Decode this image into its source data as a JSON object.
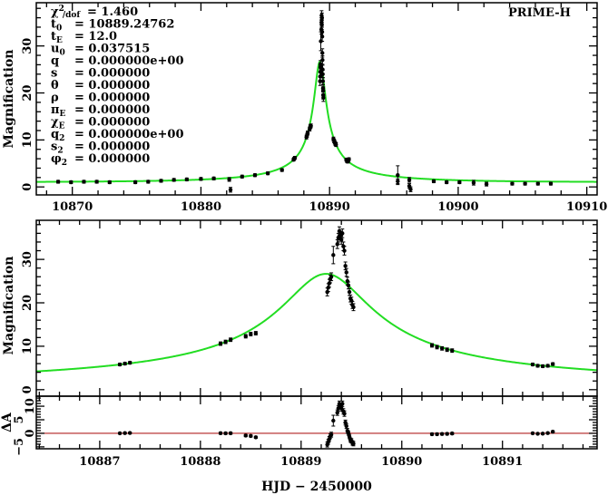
{
  "chart_data": [
    {
      "type": "scatter",
      "panel": "full-light-curve",
      "title": "",
      "annotation": "PRIME-H",
      "xlabel": "",
      "ylabel": "Magnification",
      "xlim": [
        10867.2,
        10910.8
      ],
      "ylim": [
        -1.7,
        39.2
      ],
      "xticks": [
        10870,
        10880,
        10890,
        10900,
        10910
      ],
      "yticks": [
        0,
        10,
        20,
        30
      ],
      "grid": false
    },
    {
      "type": "scatter",
      "panel": "zoomed-light-curve",
      "ylabel": "Magnification",
      "xlim": [
        10886.37,
        10891.94
      ],
      "ylim": [
        -1.5,
        39.0
      ],
      "yticks": [
        0,
        10,
        20,
        30
      ],
      "grid": false
    },
    {
      "type": "scatter",
      "panel": "residuals",
      "ylabel": "ΔA",
      "xlabel": "HJD − 2450000",
      "xlim": [
        10886.37,
        10891.94
      ],
      "ylim": [
        -5.7,
        13.7
      ],
      "xticks": [
        10887,
        10888,
        10889,
        10890,
        10891
      ],
      "yticks": [
        -5,
        0,
        5,
        10
      ],
      "zero_line_color": "#b22222",
      "grid": false
    }
  ],
  "model": {
    "color": "#22dd22",
    "t0": 10889.24762,
    "tE": 12.0,
    "u0": 0.037515
  },
  "data_points": [
    [
      10868.9,
      1.1,
      0.3
    ],
    [
      10869.9,
      1.0,
      0.3
    ],
    [
      10870.9,
      1.1,
      0.3
    ],
    [
      10871.9,
      1.1,
      0.3
    ],
    [
      10872.9,
      1.0,
      0.3
    ],
    [
      10874.9,
      1.0,
      0.3
    ],
    [
      10875.9,
      1.1,
      0.3
    ],
    [
      10876.9,
      1.3,
      0.3
    ],
    [
      10877.9,
      1.5,
      0.3
    ],
    [
      10878.9,
      1.6,
      0.3
    ],
    [
      10880.0,
      1.7,
      0.3
    ],
    [
      10881.0,
      1.8,
      0.3
    ],
    [
      10882.2,
      1.6,
      0.4
    ],
    [
      10882.3,
      -0.6,
      0.5
    ],
    [
      10883.2,
      2.2,
      0.3
    ],
    [
      10884.2,
      2.5,
      0.3
    ],
    [
      10885.2,
      2.9,
      0.3
    ],
    [
      10886.3,
      3.6,
      0.3
    ],
    [
      10887.2,
      5.8,
      0.3
    ],
    [
      10887.25,
      6.0,
      0.3
    ],
    [
      10887.3,
      6.2,
      0.3
    ],
    [
      10888.2,
      10.6,
      0.4
    ],
    [
      10888.25,
      11.0,
      0.4
    ],
    [
      10888.3,
      11.5,
      0.4
    ],
    [
      10888.45,
      12.3,
      0.4
    ],
    [
      10888.5,
      12.8,
      0.4
    ],
    [
      10888.55,
      13.0,
      0.4
    ],
    [
      10889.26,
      22.5,
      0.9
    ],
    [
      10889.27,
      23.5,
      0.9
    ],
    [
      10889.28,
      24.5,
      0.9
    ],
    [
      10889.29,
      25.5,
      0.9
    ],
    [
      10889.3,
      26.0,
      0.9
    ],
    [
      10889.32,
      31.0,
      2.0
    ],
    [
      10889.36,
      33.5,
      1.0
    ],
    [
      10889.37,
      35.0,
      1.0
    ],
    [
      10889.38,
      36.5,
      1.0
    ],
    [
      10889.39,
      35.5,
      1.0
    ],
    [
      10889.4,
      34.5,
      1.0
    ],
    [
      10889.41,
      36.0,
      1.0
    ],
    [
      10889.42,
      33.0,
      1.0
    ],
    [
      10889.43,
      32.0,
      1.0
    ],
    [
      10889.44,
      28.5,
      0.9
    ],
    [
      10889.45,
      27.0,
      0.9
    ],
    [
      10889.46,
      25.0,
      0.9
    ],
    [
      10889.47,
      24.0,
      0.8
    ],
    [
      10889.48,
      22.5,
      0.8
    ],
    [
      10889.49,
      21.0,
      0.8
    ],
    [
      10889.5,
      20.5,
      0.8
    ],
    [
      10889.51,
      19.5,
      0.8
    ],
    [
      10889.52,
      19.0,
      0.8
    ],
    [
      10890.3,
      10.2,
      0.4
    ],
    [
      10890.35,
      9.8,
      0.4
    ],
    [
      10890.4,
      9.5,
      0.4
    ],
    [
      10890.45,
      9.2,
      0.4
    ],
    [
      10890.5,
      9.0,
      0.4
    ],
    [
      10891.3,
      5.8,
      0.3
    ],
    [
      10891.35,
      5.5,
      0.3
    ],
    [
      10891.4,
      5.4,
      0.3
    ],
    [
      10891.45,
      5.5,
      0.3
    ],
    [
      10891.5,
      5.9,
      0.3
    ],
    [
      10895.3,
      2.5,
      2.0
    ],
    [
      10895.3,
      1.2,
      0.5
    ],
    [
      10896.2,
      1.5,
      0.5
    ],
    [
      10896.2,
      0.2,
      0.5
    ],
    [
      10896.3,
      -0.5,
      0.5
    ],
    [
      10898.1,
      1.2,
      0.3
    ],
    [
      10899.1,
      1.0,
      0.3
    ],
    [
      10900.1,
      1.0,
      0.3
    ],
    [
      10901.2,
      0.9,
      0.5
    ],
    [
      10902.2,
      0.6,
      0.4
    ],
    [
      10904.2,
      0.7,
      0.3
    ],
    [
      10905.2,
      0.7,
      0.3
    ],
    [
      10906.2,
      0.7,
      0.3
    ],
    [
      10907.2,
      0.7,
      0.3
    ]
  ],
  "params": [
    {
      "sym": "χ",
      "sup": "2",
      "sub": "/dof",
      "value": "= 1.460"
    },
    {
      "sym": "t",
      "sup": "",
      "sub": "0",
      "value": "= 10889.24762"
    },
    {
      "sym": "t",
      "sup": "",
      "sub": "E",
      "value": "= 12.0"
    },
    {
      "sym": "u",
      "sup": "",
      "sub": "0",
      "value": "= 0.037515"
    },
    {
      "sym": "q",
      "sup": "",
      "sub": "",
      "value": "= 0.000000e+00"
    },
    {
      "sym": "s",
      "sup": "",
      "sub": "",
      "value": "= 0.000000"
    },
    {
      "sym": "θ",
      "sup": "",
      "sub": "",
      "value": "= 0.000000"
    },
    {
      "sym": "ρ",
      "sup": "",
      "sub": "",
      "value": "= 0.000000"
    },
    {
      "sym": "π",
      "sup": "",
      "sub": "E",
      "value": "= 0.000000"
    },
    {
      "sym": "χ",
      "sup": "",
      "sub": "E",
      "value": "= 0.000000"
    },
    {
      "sym": "q",
      "sup": "",
      "sub": "2",
      "value": "= 0.000000e+00"
    },
    {
      "sym": "s",
      "sup": "",
      "sub": "2",
      "value": "= 0.000000"
    },
    {
      "sym": "φ",
      "sup": "",
      "sub": "2",
      "value": "= 0.000000"
    }
  ]
}
